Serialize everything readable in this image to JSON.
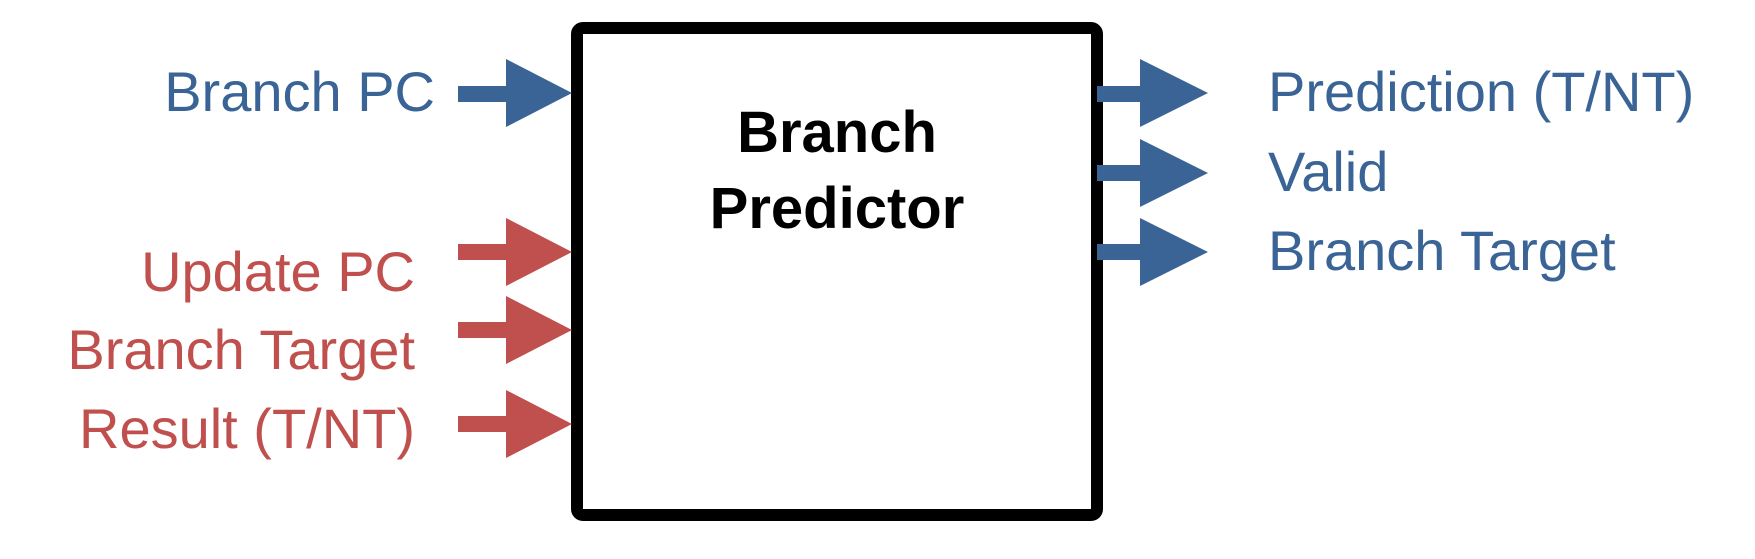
{
  "block": {
    "title_line1": "Branch",
    "title_line2": "Predictor"
  },
  "inputs": {
    "lookup": [
      {
        "label": "Branch PC"
      }
    ],
    "update": [
      {
        "label": "Update PC"
      },
      {
        "label": "Branch Target"
      },
      {
        "label": "Result (T/NT)"
      }
    ]
  },
  "outputs": [
    {
      "label": "Prediction (T/NT)"
    },
    {
      "label": "Valid"
    },
    {
      "label": "Branch Target"
    }
  ],
  "colors": {
    "lookup": "#3a6496",
    "update": "#c0504d",
    "outline": "#000000"
  }
}
